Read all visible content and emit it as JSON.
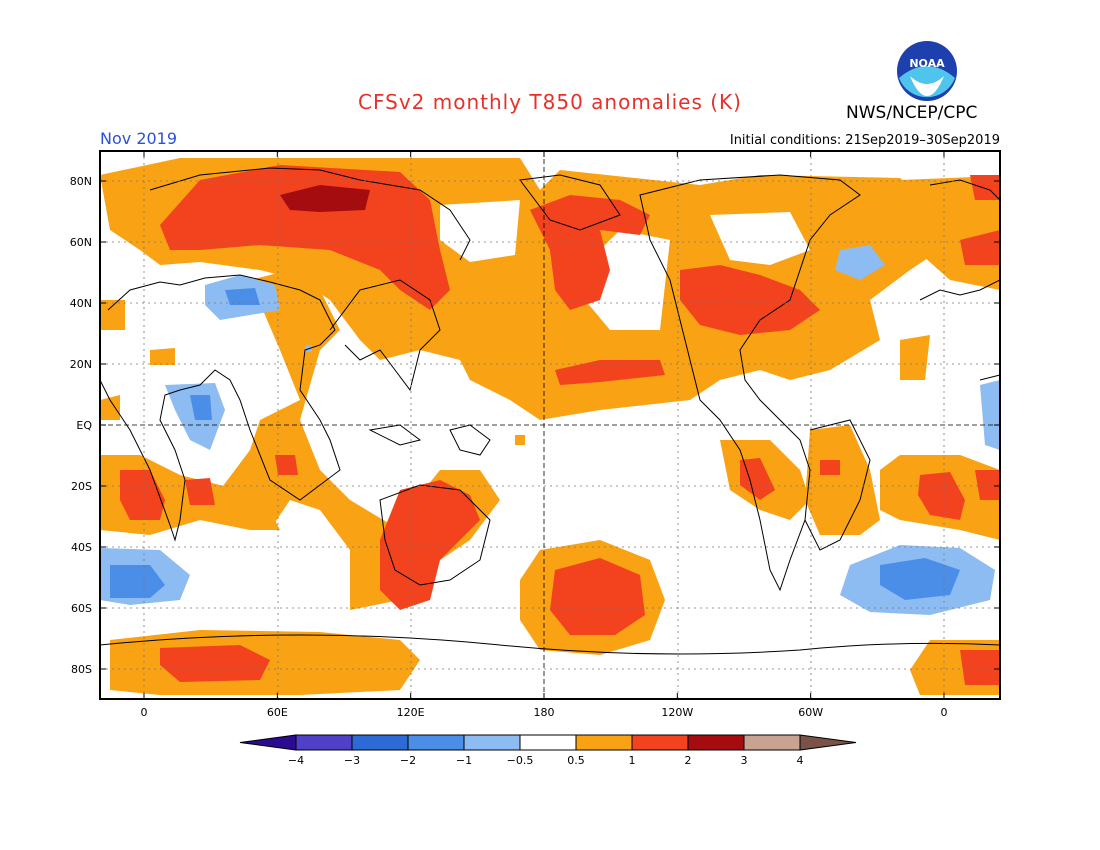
{
  "header": {
    "title": "CFSv2 monthly T850 anomalies (K)",
    "agency": "NWS/NCEP/CPC",
    "logo_text": "NOAA",
    "month": "Nov 2019",
    "initial_label": "Initial conditions:",
    "initial_range": "21Sep2019–30Sep2019"
  },
  "axes": {
    "lat_labels": [
      "80N",
      "60N",
      "40N",
      "20N",
      "EQ",
      "20S",
      "40S",
      "60S",
      "80S"
    ],
    "lon_labels": [
      "0",
      "60E",
      "120E",
      "180",
      "120W",
      "60W",
      "0"
    ]
  },
  "colorbar": {
    "labels": [
      "−4",
      "−3",
      "−2",
      "−1",
      "−0.5",
      "0.5",
      "1",
      "2",
      "3",
      "4"
    ],
    "colors": [
      "#2a0b92",
      "#5040c8",
      "#2c6ad6",
      "#4a8ee8",
      "#8cbcf2",
      "#ffffff",
      "#f9a214",
      "#f2421e",
      "#a40c10",
      "#c8a392",
      "#7a5248"
    ]
  },
  "colors": {
    "pos_weak": "#f9a214",
    "pos_mid": "#f2421e",
    "pos_strong": "#a40c10",
    "neg_weak": "#8cbcf2",
    "neg_mid": "#4a8ee8",
    "title": "#e8302a",
    "month": "#2a52d8"
  }
}
